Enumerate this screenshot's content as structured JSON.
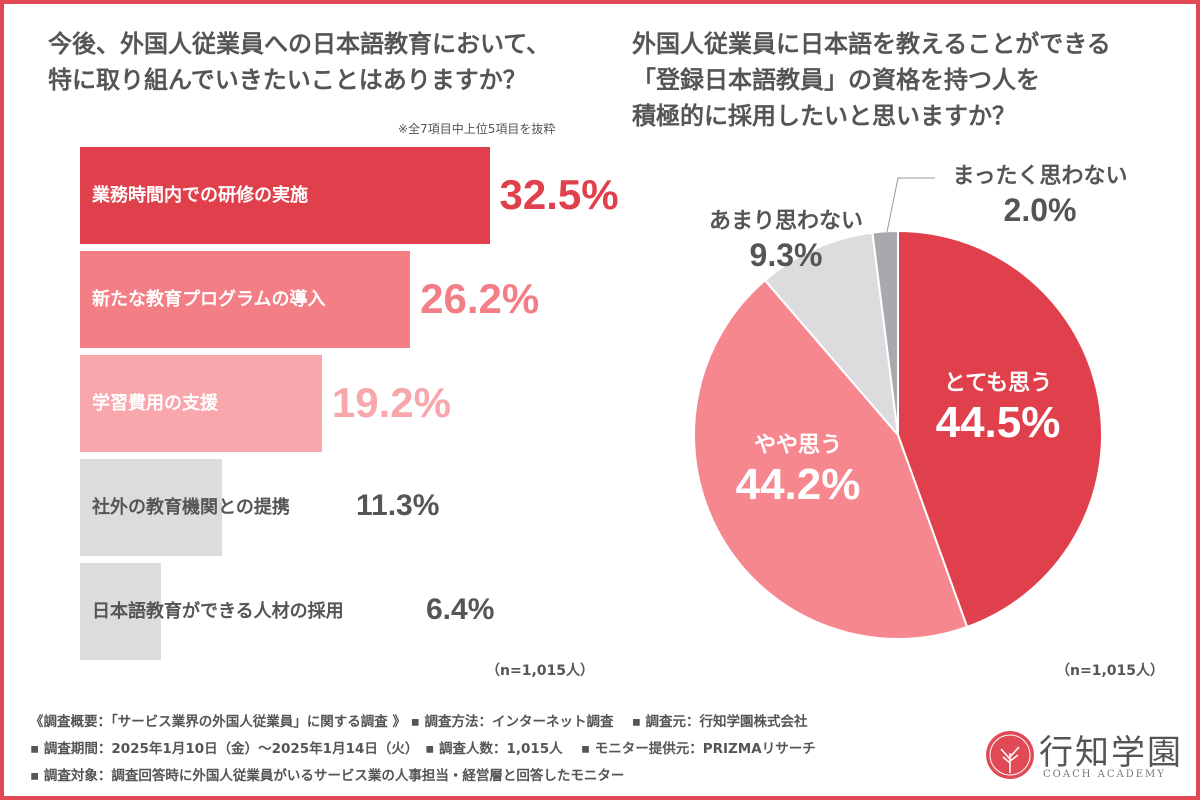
{
  "left": {
    "title_line1": "今後、外国人従業員への日本語教育において、",
    "title_line2": "特に取り組んでいきたいことはありますか？",
    "note": "※全7項目中上位5項目を抜粋",
    "n": "（n=1,015人）"
  },
  "right": {
    "title_line1": "外国人従業員に日本語を教えることができる",
    "title_line2": "「登録日本語教員」の資格を持つ人を",
    "title_line3": "積極的に採用したいと思いますか？",
    "n": "（n=1,015人）"
  },
  "chart_data": [
    {
      "type": "bar",
      "orientation": "horizontal",
      "categories": [
        "業務時間内での研修の実施",
        "新たな教育プログラムの導入",
        "学習費用の支援",
        "社外の教育機関との提携",
        "日本語教育ができる人材の採用"
      ],
      "values": [
        32.5,
        26.2,
        19.2,
        11.3,
        6.4
      ],
      "value_labels": [
        "32.5%",
        "26.2%",
        "19.2%",
        "11.3%",
        "6.4%"
      ],
      "colors": [
        "#e0404c",
        "#f47e86",
        "#f8a7ac",
        "#dcdcdf",
        "#dcdcdf"
      ],
      "label_colors": [
        "#ffffff",
        "#ffffff",
        "#ffffff",
        "#555555",
        "#555555"
      ],
      "value_colors": [
        "#e0404c",
        "#f47e86",
        "#f8a7ac",
        "#555555",
        "#555555"
      ]
    },
    {
      "type": "pie",
      "categories": [
        "とても思う",
        "やや思う",
        "あまり思わない",
        "まったく思わない"
      ],
      "values": [
        44.5,
        44.2,
        9.3,
        2.0
      ],
      "value_labels": [
        "44.5%",
        "44.2%",
        "9.3%",
        "2.0%"
      ],
      "colors": [
        "#e0404c",
        "#f7878f",
        "#dcdcdf",
        "#a9a9ad"
      ],
      "start": "12 o'clock, clockwise"
    }
  ],
  "footer": {
    "line1": "《調査概要：「サービス業界の外国人従業員」に関する調査 》 ▪ 調査方法：インターネット調査　 ▪ 調査元：行知学園株式会社",
    "line2": "▪ 調査期間：2025年1月10日（金）～2025年1月14日（火）　▪ 調査人数：1,015人　 ▪ モニター提供元：PRIZMAリサーチ",
    "line3": "▪ 調査対象：調査回答時に外国人従業員がいるサービス業の人事担当・経営層と回答したモニター"
  },
  "logo": {
    "name": "行知学園",
    "sub": "COACH ACADEMY"
  },
  "colors": {
    "accent": "#e04a55"
  }
}
